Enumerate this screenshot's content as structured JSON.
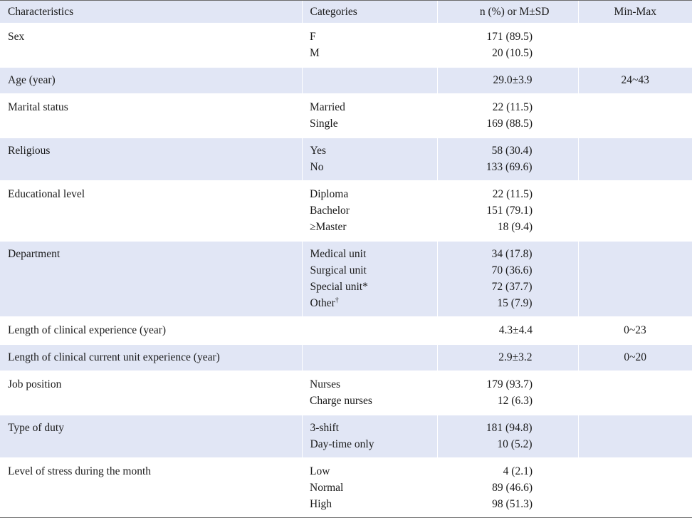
{
  "header": {
    "characteristics": "Characteristics",
    "categories": "Categories",
    "n_percent": "n (%) or M±SD",
    "min_max": "Min-Max"
  },
  "rows": [
    {
      "characteristic": "Sex",
      "categories": [
        "F",
        "M"
      ],
      "values": [
        "171 (89.5)",
        "20 (10.5)"
      ],
      "minmax": ""
    },
    {
      "characteristic": "Age (year)",
      "categories": [
        ""
      ],
      "values": [
        "29.0±3.9"
      ],
      "minmax": "24~43"
    },
    {
      "characteristic": "Marital status",
      "categories": [
        "Married",
        "Single"
      ],
      "values": [
        "22 (11.5)",
        "169 (88.5)"
      ],
      "minmax": ""
    },
    {
      "characteristic": "Religious",
      "categories": [
        "Yes",
        "No"
      ],
      "values": [
        "58 (30.4)",
        "133 (69.6)"
      ],
      "minmax": ""
    },
    {
      "characteristic": "Educational level",
      "categories": [
        "Diploma",
        "Bachelor",
        "≥Master"
      ],
      "values": [
        "22 (11.5)",
        "151 (79.1)",
        "18 (9.4)"
      ],
      "minmax": ""
    },
    {
      "characteristic": "Department",
      "categories": [
        "Medical unit",
        "Surgical unit",
        "Special unit*",
        "Other"
      ],
      "values": [
        "34 (17.8)",
        "70 (36.6)",
        "72 (37.7)",
        "15 (7.9)"
      ],
      "minmax": "",
      "other_mark": "†"
    },
    {
      "characteristic": "Length of clinical experience (year)",
      "categories": [
        ""
      ],
      "values": [
        "4.3±4.4"
      ],
      "minmax": "0~23"
    },
    {
      "characteristic": "Length of clinical current unit experience (year)",
      "categories": [
        ""
      ],
      "values": [
        "2.9±3.2"
      ],
      "minmax": "0~20"
    },
    {
      "characteristic": "Job position",
      "categories": [
        "Nurses",
        "Charge nurses"
      ],
      "values": [
        "179 (93.7)",
        "12 (6.3)"
      ],
      "minmax": ""
    },
    {
      "characteristic": "Type of duty",
      "categories": [
        "3-shift",
        "Day-time only"
      ],
      "values": [
        "181 (94.8)",
        "10 (5.2)"
      ],
      "minmax": ""
    },
    {
      "characteristic": "Level of stress during the month",
      "categories": [
        "Low",
        "Normal",
        "High"
      ],
      "values": [
        "4 (2.1)",
        "89 (46.6)",
        "98 (51.3)"
      ],
      "minmax": ""
    }
  ]
}
